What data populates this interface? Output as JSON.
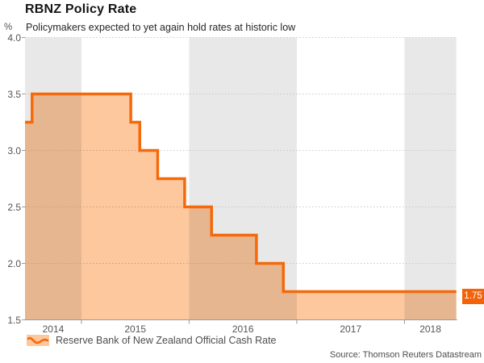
{
  "chart_data": {
    "type": "area",
    "step": true,
    "title": "RBNZ Policy Rate",
    "subtitle": "Policymakers expected to yet again hold rates at historic low",
    "unit_label": "%",
    "series": [
      {
        "name": "Reserve Bank of New Zealand Official Cash Rate",
        "points": [
          {
            "date": "2014-06",
            "rate": 3.25
          },
          {
            "date": "2014-07",
            "rate": 3.5
          },
          {
            "date": "2015-06",
            "rate": 3.25
          },
          {
            "date": "2015-07",
            "rate": 3.0
          },
          {
            "date": "2015-09",
            "rate": 2.75
          },
          {
            "date": "2015-12",
            "rate": 2.5
          },
          {
            "date": "2016-03",
            "rate": 2.25
          },
          {
            "date": "2016-08",
            "rate": 2.0
          },
          {
            "date": "2016-11",
            "rate": 1.75
          }
        ]
      }
    ],
    "ylim": [
      1.5,
      4.0
    ],
    "yticks": [
      "4.0",
      "3.5",
      "3.0",
      "2.5",
      "2.0",
      "1.5"
    ],
    "xticks": [
      "2014",
      "2015",
      "2016",
      "2017",
      "2018"
    ],
    "shaded_years": [
      2014,
      2016,
      2018
    ],
    "x_range_end": "2018-06",
    "last_value_label": "1.75",
    "grid": true,
    "legend_position": "bottom-left",
    "colors": {
      "line": "#F5690A",
      "fill": "#FDC89E",
      "band": "#E8E8E8",
      "grid": "#C9C9C9",
      "axis": "#9A9A9A",
      "label_box": "#F2630A",
      "label_text": "#FFFFFF"
    }
  },
  "footer": {
    "source": "Source: Thomson Reuters Datastream"
  }
}
